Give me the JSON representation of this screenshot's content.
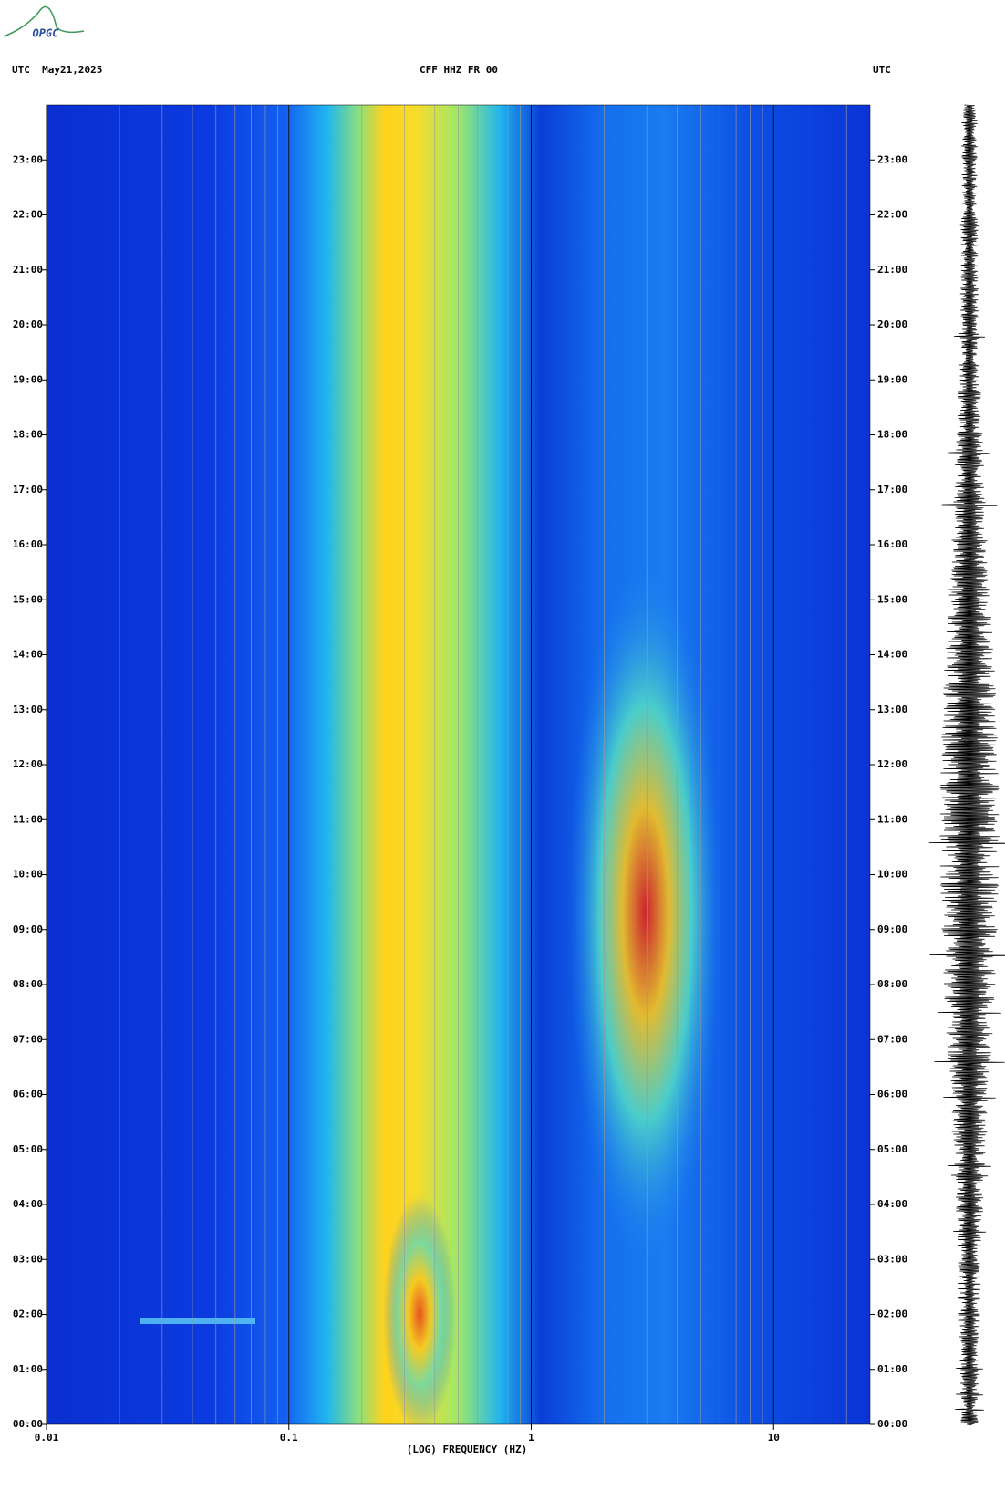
{
  "logo": "OPGC",
  "chart_data": {
    "type": "spectrogram",
    "title": "CFF HHZ FR 00",
    "left_header": "UTC  May21,2025",
    "right_header": "UTC",
    "xlabel": "(LOG) FREQUENCY (HZ)",
    "xscale": "log",
    "xlim": [
      0.01,
      25
    ],
    "xticks": [
      0.01,
      0.1,
      1,
      10
    ],
    "xminorticks": [
      0.02,
      0.03,
      0.04,
      0.05,
      0.06,
      0.07,
      0.08,
      0.09,
      0.2,
      0.3,
      0.4,
      0.5,
      0.6,
      0.7,
      0.8,
      0.9,
      2,
      3,
      4,
      5,
      6,
      7,
      8,
      9,
      20
    ],
    "ylim": [
      0,
      24
    ],
    "yticks": [
      {
        "value": 0,
        "label": "00:00"
      },
      {
        "value": 1,
        "label": "01:00"
      },
      {
        "value": 2,
        "label": "02:00"
      },
      {
        "value": 3,
        "label": "03:00"
      },
      {
        "value": 4,
        "label": "04:00"
      },
      {
        "value": 5,
        "label": "05:00"
      },
      {
        "value": 6,
        "label": "06:00"
      },
      {
        "value": 7,
        "label": "07:00"
      },
      {
        "value": 8,
        "label": "08:00"
      },
      {
        "value": 9,
        "label": "09:00"
      },
      {
        "value": 10,
        "label": "10:00"
      },
      {
        "value": 11,
        "label": "11:00"
      },
      {
        "value": 12,
        "label": "12:00"
      },
      {
        "value": 13,
        "label": "13:00"
      },
      {
        "value": 14,
        "label": "14:00"
      },
      {
        "value": 15,
        "label": "15:00"
      },
      {
        "value": 16,
        "label": "16:00"
      },
      {
        "value": 17,
        "label": "17:00"
      },
      {
        "value": 18,
        "label": "18:00"
      },
      {
        "value": 19,
        "label": "19:00"
      },
      {
        "value": 20,
        "label": "20:00"
      },
      {
        "value": 21,
        "label": "21:00"
      },
      {
        "value": 22,
        "label": "22:00"
      },
      {
        "value": 23,
        "label": "23:00"
      }
    ],
    "grid": true
  }
}
